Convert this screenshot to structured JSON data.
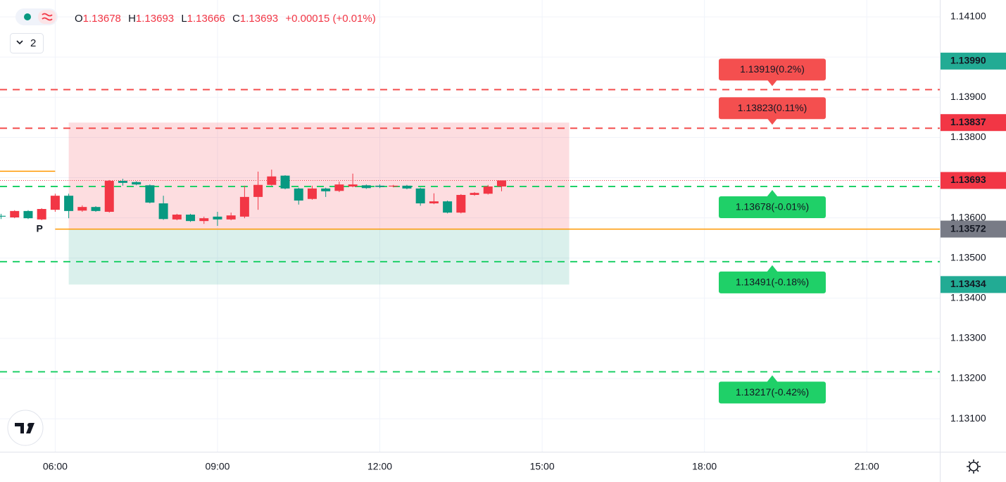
{
  "chart_data": {
    "type": "candlestick",
    "header": {
      "open_label": "O",
      "open": "1.13678",
      "high_label": "H",
      "high": "1.13693",
      "low_label": "L",
      "low": "1.13666",
      "close_label": "C",
      "close": "1.13693",
      "change": "+0.00015 (+0.01%)",
      "indicator_count": "2"
    },
    "x": [
      5,
      5.25,
      5.5,
      5.75,
      6,
      6.25,
      6.5,
      6.75,
      7,
      7.25,
      7.5,
      7.75,
      8,
      8.25,
      8.5,
      8.75,
      9,
      9.25,
      9.5,
      9.75,
      10,
      10.25,
      10.5,
      10.75,
      11,
      11.25,
      11.5,
      11.75,
      12,
      12.25,
      12.5,
      12.75,
      13,
      13.25,
      13.5,
      13.75,
      14,
      14.25
    ],
    "open": [
      1.13605,
      1.13601,
      1.13617,
      1.13596,
      1.1362,
      1.13655,
      1.13618,
      1.13627,
      1.13615,
      1.13692,
      1.13689,
      1.13681,
      1.13636,
      1.13596,
      1.13608,
      1.13592,
      1.13603,
      1.13596,
      1.13603,
      1.13652,
      1.13682,
      1.13705,
      1.13673,
      1.13647,
      1.13673,
      1.13667,
      1.13678,
      1.13681,
      1.1368,
      1.13678,
      1.1368,
      1.13673,
      1.13636,
      1.13641,
      1.13613,
      1.13657,
      1.1366,
      1.13678
    ],
    "high": [
      1.1361,
      1.13619,
      1.13619,
      1.13624,
      1.1366,
      1.1366,
      1.13631,
      1.13629,
      1.13694,
      1.13697,
      1.13691,
      1.13683,
      1.13655,
      1.1361,
      1.1361,
      1.13603,
      1.13615,
      1.13613,
      1.1368,
      1.13715,
      1.1372,
      1.13706,
      1.13675,
      1.1368,
      1.13675,
      1.1369,
      1.1371,
      1.13683,
      1.13683,
      1.13682,
      1.13682,
      1.13675,
      1.13661,
      1.13643,
      1.13659,
      1.13664,
      1.13682,
      1.13693
    ],
    "low": [
      1.13597,
      1.13599,
      1.13597,
      1.13594,
      1.13615,
      1.13599,
      1.13615,
      1.13615,
      1.13613,
      1.1368,
      1.13681,
      1.13636,
      1.13595,
      1.13594,
      1.1359,
      1.13585,
      1.1358,
      1.13594,
      1.13599,
      1.1362,
      1.1368,
      1.13671,
      1.13633,
      1.13645,
      1.13652,
      1.13664,
      1.13676,
      1.13672,
      1.13674,
      1.13676,
      1.13671,
      1.1363,
      1.13634,
      1.13611,
      1.13611,
      1.13655,
      1.13658,
      1.13666
    ],
    "close": [
      1.13603,
      1.13617,
      1.13599,
      1.13622,
      1.13655,
      1.13617,
      1.13627,
      1.13617,
      1.13692,
      1.13687,
      1.13683,
      1.13638,
      1.13597,
      1.13608,
      1.13592,
      1.13599,
      1.13596,
      1.13606,
      1.13652,
      1.13682,
      1.13703,
      1.13673,
      1.13643,
      1.13673,
      1.13666,
      1.13683,
      1.13683,
      1.13674,
      1.13677,
      1.1368,
      1.13673,
      1.13636,
      1.13641,
      1.13613,
      1.13657,
      1.13662,
      1.13678,
      1.13693
    ],
    "up_color": "#f23645",
    "down_color": "#089981",
    "xlim": [
      4.98,
      22.35
    ],
    "xticks": [
      {
        "value": 6,
        "label": "06:00"
      },
      {
        "value": 9,
        "label": "09:00"
      },
      {
        "value": 12,
        "label": "12:00"
      },
      {
        "value": 15,
        "label": "15:00"
      },
      {
        "value": 18,
        "label": "18:00"
      },
      {
        "value": 21,
        "label": "21:00"
      }
    ],
    "ylim": [
      1.13018,
      1.14142
    ],
    "yticks": [
      {
        "value": 1.131,
        "label": "1.13100"
      },
      {
        "value": 1.132,
        "label": "1.13200"
      },
      {
        "value": 1.133,
        "label": "1.13300"
      },
      {
        "value": 1.134,
        "label": "1.13400"
      },
      {
        "value": 1.135,
        "label": "1.13500"
      },
      {
        "value": 1.136,
        "label": "1.13600"
      },
      {
        "value": 1.137,
        "label": "1.13700"
      },
      {
        "value": 1.138,
        "label": "1.13800"
      },
      {
        "value": 1.139,
        "label": "1.13900"
      },
      {
        "value": 1.14,
        "label": "1.14000"
      },
      {
        "value": 1.141,
        "label": "1.14100"
      }
    ],
    "grid": true,
    "levels": [
      {
        "value": 1.13919,
        "label": "1.13919(0.2%)",
        "color": "#f44f4f",
        "side": "above"
      },
      {
        "value": 1.13823,
        "label": "1.13823(0.11%)",
        "color": "#f44f4f",
        "side": "above"
      },
      {
        "value": 1.13678,
        "label": "1.13678(-0.01%)",
        "color": "#1fd068",
        "side": "below"
      },
      {
        "value": 1.13491,
        "label": "1.13491(-0.18%)",
        "color": "#1fd068",
        "side": "below"
      },
      {
        "value": 1.13217,
        "label": "1.13217(-0.42%)",
        "color": "#1fd068",
        "side": "below"
      }
    ],
    "price_labels": [
      {
        "value": 1.1399,
        "label": "1.13990",
        "color": "#22ab94"
      },
      {
        "value": 1.13837,
        "label": "1.13837",
        "color": "#f23645"
      },
      {
        "value": 1.13693,
        "label": "1.13693",
        "color": "#f23645"
      },
      {
        "value": 1.13572,
        "label": "1.13572",
        "color": "#787b86"
      },
      {
        "value": 1.13434,
        "label": "1.13434",
        "color": "#22ab94"
      }
    ],
    "position": {
      "start": 6.25,
      "end": 15.5,
      "entry": 1.13572,
      "stop": 1.13837,
      "target": 1.13434
    },
    "pivot": {
      "label": "P",
      "value": 1.13572,
      "prior_value": 1.13716,
      "color": "#ff9800"
    },
    "last_price": 1.13693
  }
}
